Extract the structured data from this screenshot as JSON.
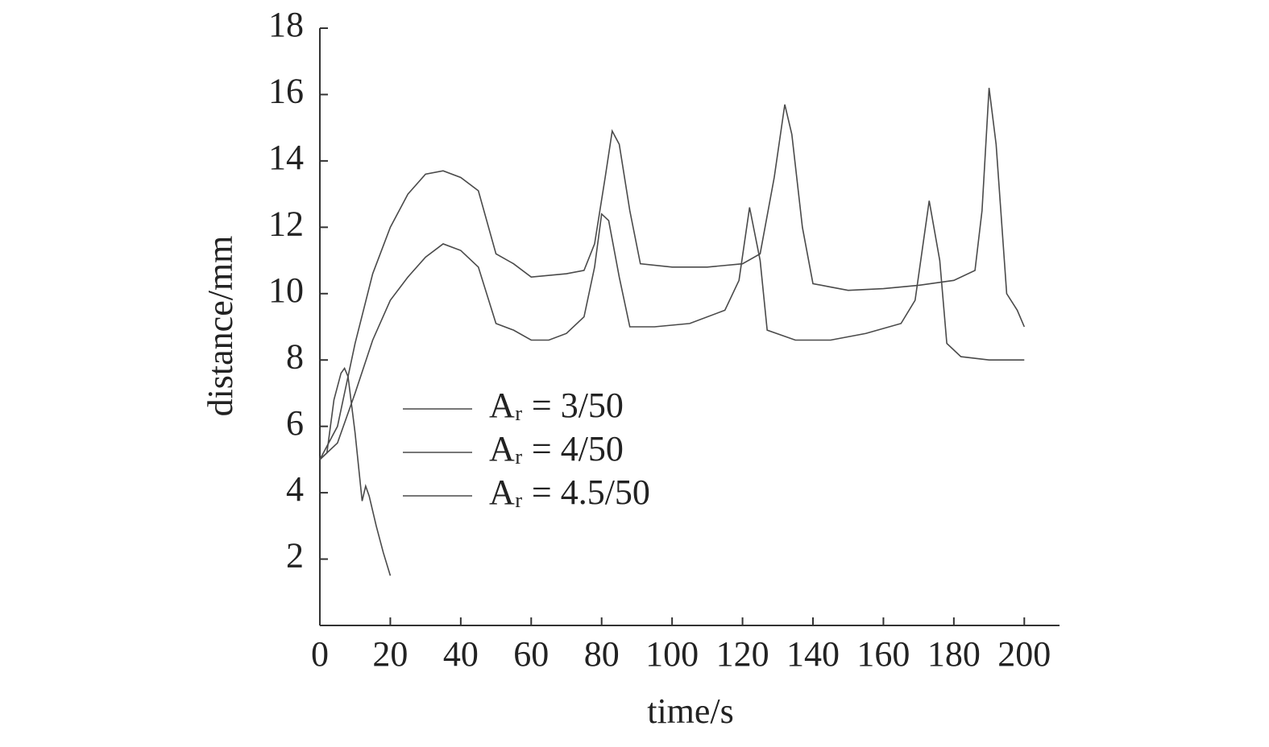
{
  "chart_data": {
    "type": "line",
    "x_label": "time/s",
    "y_label": "distance/mm",
    "xlim": [
      0,
      210
    ],
    "ylim": [
      0,
      18
    ],
    "xticks": [
      0,
      20,
      40,
      60,
      80,
      100,
      120,
      140,
      160,
      180,
      200
    ],
    "yticks": [
      2,
      4,
      6,
      8,
      10,
      12,
      14,
      16,
      18
    ],
    "series": [
      {
        "name": "Aᵣ = 3/50",
        "color": "#4a4a4a",
        "x": [
          0,
          2,
          4,
          6,
          7,
          8,
          10,
          12,
          13,
          14,
          16,
          18,
          20
        ],
        "values": [
          5,
          5.2,
          6.8,
          7.6,
          7.75,
          7.5,
          5.8,
          3.75,
          4.2,
          3.9,
          3.0,
          2.2,
          1.5
        ]
      },
      {
        "name": "Aᵣ = 4/50",
        "color": "#4a4a4a",
        "x": [
          0,
          5,
          10,
          15,
          20,
          25,
          30,
          35,
          40,
          45,
          50,
          55,
          60,
          65,
          70,
          75,
          78,
          80,
          82,
          85,
          88,
          95,
          105,
          115,
          119,
          122,
          125,
          127,
          135,
          145,
          155,
          165,
          169,
          173,
          176,
          178,
          182,
          190,
          200
        ],
        "values": [
          5.0,
          5.5,
          7.0,
          8.6,
          9.8,
          10.5,
          11.1,
          11.5,
          11.3,
          10.8,
          9.1,
          8.9,
          8.6,
          8.6,
          8.8,
          9.3,
          10.8,
          12.4,
          12.2,
          10.5,
          9.0,
          9.0,
          9.1,
          9.5,
          10.4,
          12.6,
          11.0,
          8.9,
          8.6,
          8.6,
          8.8,
          9.1,
          9.8,
          12.8,
          11.0,
          8.5,
          8.1,
          8.0,
          8.0
        ]
      },
      {
        "name": "Aᵣ = 4.5/50",
        "color": "#4a4a4a",
        "x": [
          0,
          5,
          10,
          15,
          20,
          25,
          30,
          35,
          40,
          45,
          50,
          55,
          60,
          70,
          75,
          78,
          81,
          83,
          85,
          88,
          91,
          100,
          110,
          120,
          125,
          129,
          132,
          134,
          137,
          140,
          145,
          150,
          160,
          170,
          180,
          186,
          188,
          190,
          192,
          195,
          198,
          200
        ],
        "values": [
          5.0,
          6.0,
          8.5,
          10.6,
          12.0,
          13.0,
          13.6,
          13.7,
          13.5,
          13.1,
          11.2,
          10.9,
          10.5,
          10.6,
          10.7,
          11.5,
          13.5,
          14.9,
          14.5,
          12.5,
          10.9,
          10.8,
          10.8,
          10.9,
          11.2,
          13.5,
          15.7,
          14.8,
          12.0,
          10.3,
          10.2,
          10.1,
          10.15,
          10.25,
          10.4,
          10.7,
          12.5,
          16.2,
          14.5,
          10.0,
          9.5,
          9.0
        ]
      }
    ]
  }
}
